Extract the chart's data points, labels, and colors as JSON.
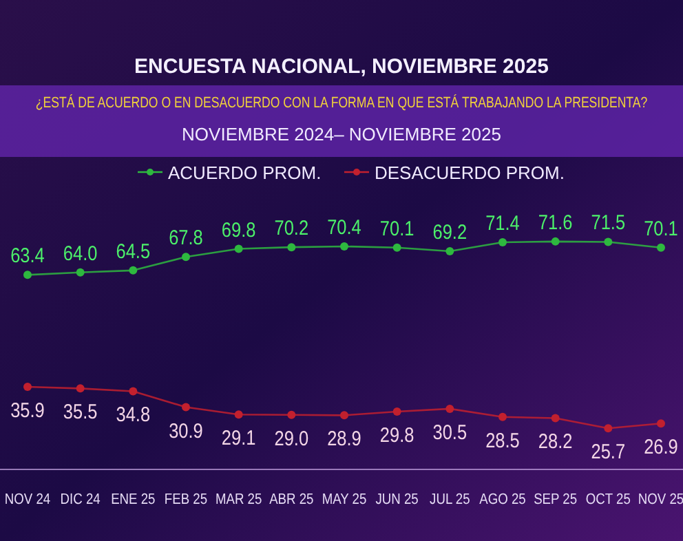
{
  "chart_data": {
    "type": "line",
    "title": "ENCUESTA NACIONAL, NOVIEMBRE 2025",
    "subtitle": "¿ESTÁ DE ACUERDO O EN DESACUERDO CON LA FORMA EN QUE ESTÁ TRABAJANDO LA PRESIDENTA?",
    "annotations": [
      "NOVIEMBRE 2024– NOVIEMBRE 2025"
    ],
    "categories": [
      "NOV 24",
      "DIC 24",
      "ENE 25",
      "FEB 25",
      "MAR 25",
      "ABR 25",
      "MAY 25",
      "JUN 25",
      "JUL 25",
      "AGO 25",
      "SEP 25",
      "OCT 25",
      "NOV 25"
    ],
    "series": [
      {
        "name": "ACUERDO PROM.",
        "color": "#2eb83f",
        "values": [
          63.4,
          64.0,
          64.5,
          67.8,
          69.8,
          70.2,
          70.4,
          70.1,
          69.2,
          71.4,
          71.6,
          71.5,
          70.1
        ],
        "value_labels": [
          "63.4",
          "64.0",
          "64.5",
          "67.8",
          "69.8",
          "70.2",
          "70.4",
          "70.1",
          "69.2",
          "71.4",
          "71.6",
          "71.5",
          "70.1"
        ]
      },
      {
        "name": "DESACUERDO PROM.",
        "color": "#c2202e",
        "values": [
          35.9,
          35.5,
          34.8,
          30.9,
          29.1,
          29.0,
          28.9,
          29.8,
          30.5,
          28.5,
          28.2,
          25.7,
          26.9
        ],
        "value_labels": [
          "35.9",
          "35.5",
          "34.8",
          "30.9",
          "29.1",
          "29.0",
          "28.9",
          "29.8",
          "30.5",
          "28.5",
          "28.2",
          "25.7",
          "26.9"
        ]
      }
    ],
    "tick_labels": "x",
    "legend": "top",
    "marker": "circle",
    "line_style": "solid"
  }
}
